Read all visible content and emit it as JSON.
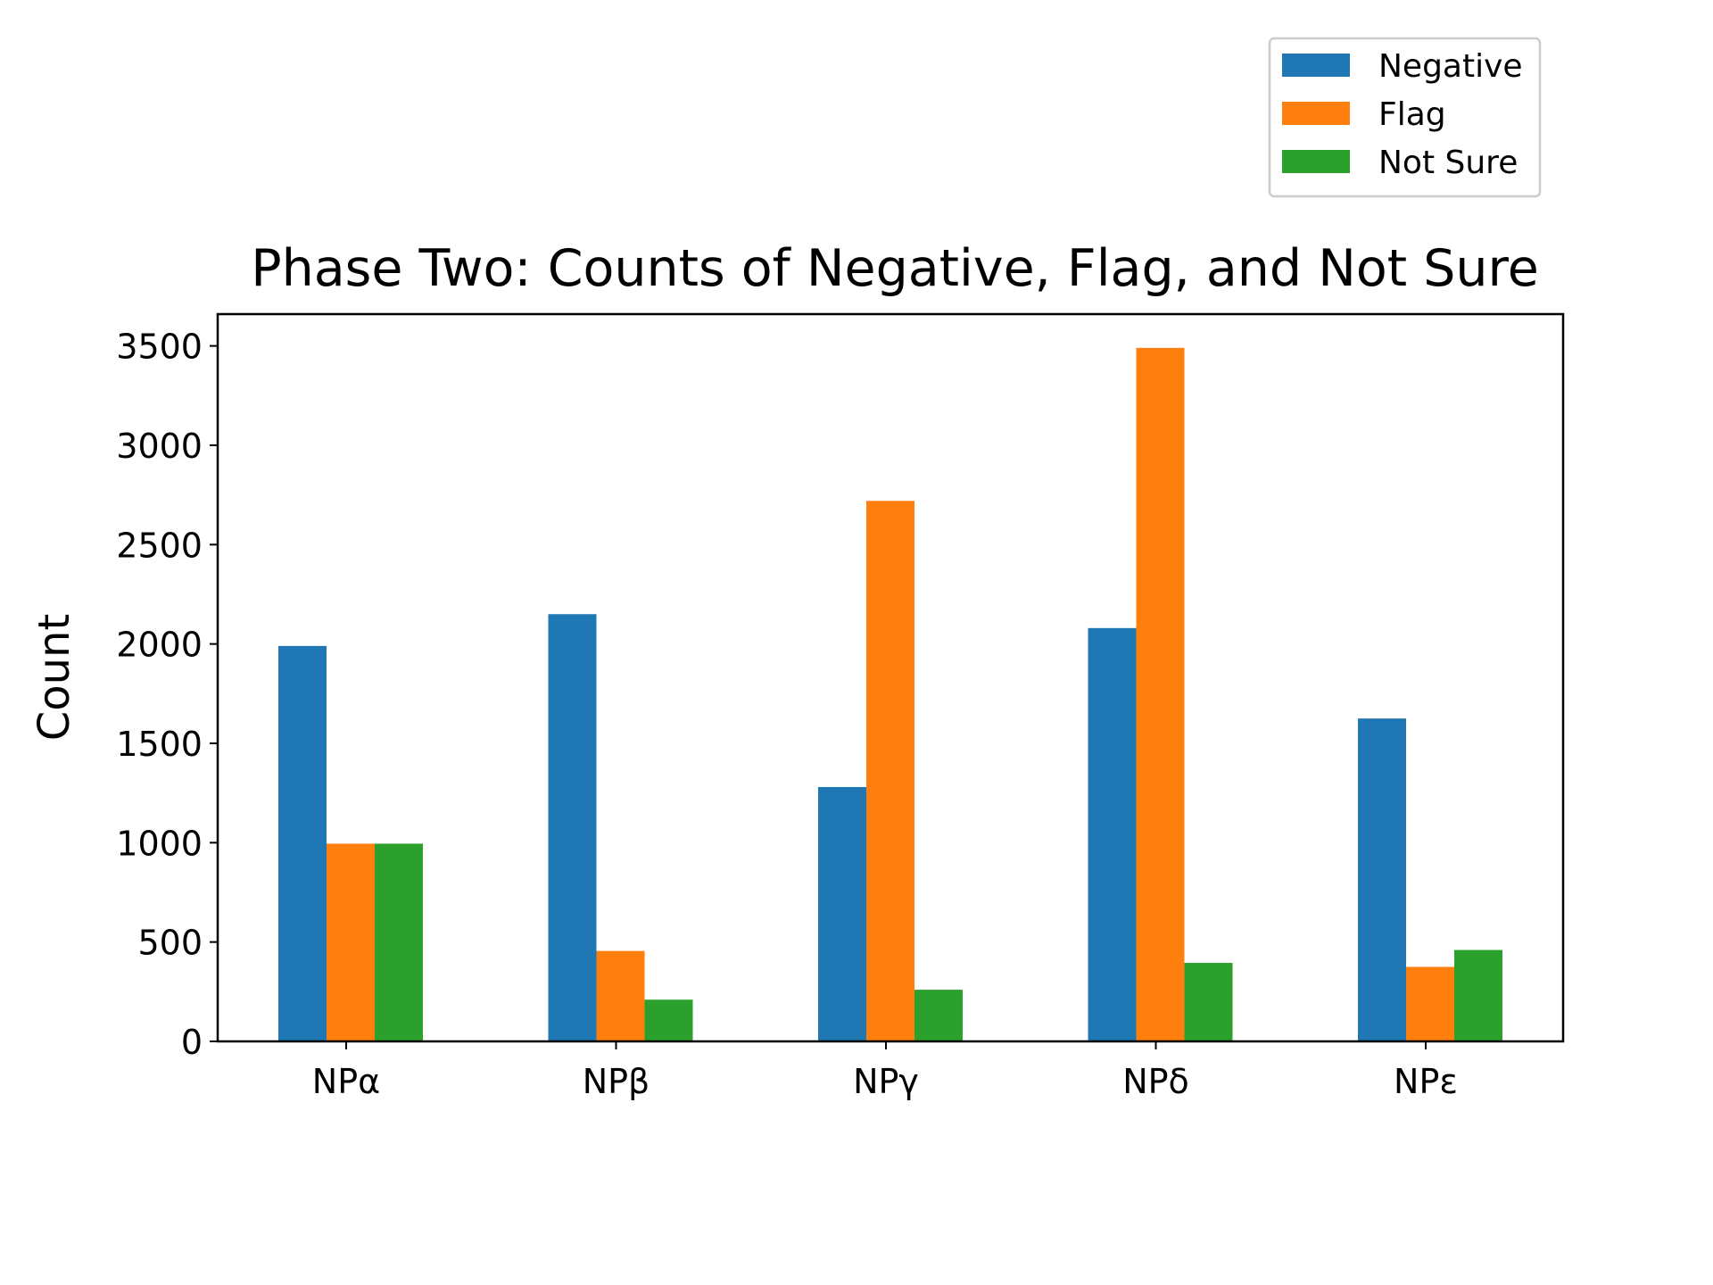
{
  "chart_data": {
    "type": "bar",
    "title": "Phase Two: Counts of Negative, Flag, and Not Sure",
    "xlabel": "",
    "ylabel": "Count",
    "categories": [
      "NPα",
      "NPβ",
      "NPγ",
      "NPδ",
      "NPε"
    ],
    "series": [
      {
        "name": "Negative",
        "color": "#1f77b4",
        "values": [
          1990,
          2150,
          1280,
          2080,
          1625
        ]
      },
      {
        "name": "Flag",
        "color": "#ff7f0e",
        "values": [
          995,
          455,
          2720,
          3490,
          375
        ]
      },
      {
        "name": "Not Sure",
        "color": "#2ca02c",
        "values": [
          995,
          210,
          260,
          395,
          460
        ]
      }
    ],
    "ylim": [
      0,
      3660
    ],
    "yticks": [
      0,
      500,
      1000,
      1500,
      2000,
      2500,
      3000,
      3500
    ],
    "grid": false,
    "legend_position": "top-right, outside above plot"
  }
}
